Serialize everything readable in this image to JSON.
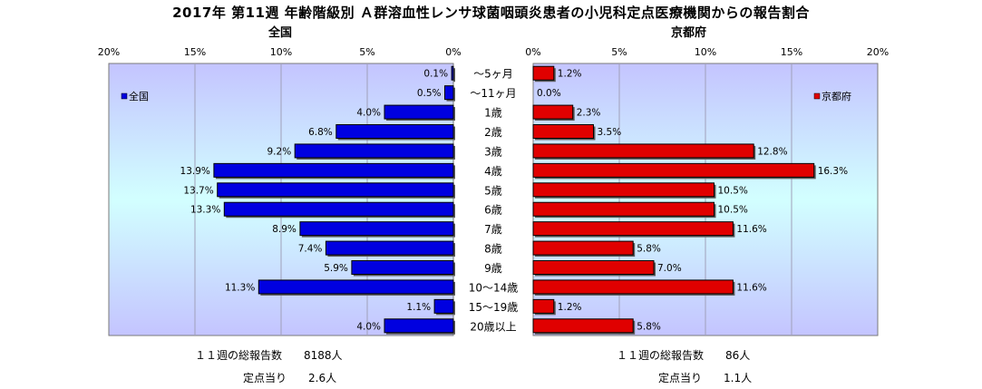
{
  "chart_data": {
    "type": "bar",
    "orientation": "horizontal",
    "title": "2017年 第11週 年齢階級別 Ａ群溶血性レンサ球菌咽頭炎患者の小児科定点医療機関からの報告割合",
    "categories": [
      "～5ヶ月",
      "～11ヶ月",
      "1歳",
      "2歳",
      "3歳",
      "4歳",
      "5歳",
      "6歳",
      "7歳",
      "8歳",
      "9歳",
      "10～14歳",
      "15～19歳",
      "20歳以上"
    ],
    "left": {
      "panel_title": "全国",
      "legend": "全国",
      "color": "#0000e0",
      "values": [
        0.1,
        0.5,
        4.0,
        6.8,
        9.2,
        13.9,
        13.7,
        13.3,
        8.9,
        7.4,
        5.9,
        11.3,
        1.1,
        4.0
      ],
      "labels": [
        "0.1%",
        "0.5%",
        "4.0%",
        "6.8%",
        "9.2%",
        "13.9%",
        "13.7%",
        "13.3%",
        "8.9%",
        "7.4%",
        "5.9%",
        "11.3%",
        "1.1%",
        "4.0%"
      ],
      "xlim": [
        0,
        20
      ],
      "ticks": [
        "20%",
        "15%",
        "10%",
        "5%",
        "0%"
      ],
      "legend_position": "left",
      "grid": true
    },
    "right": {
      "panel_title": "京都府",
      "legend": "京都府",
      "color": "#e00000",
      "values": [
        1.2,
        0.0,
        2.3,
        3.5,
        12.8,
        16.3,
        10.5,
        10.5,
        11.6,
        5.8,
        7.0,
        11.6,
        1.2,
        5.8
      ],
      "labels": [
        "1.2%",
        "0.0%",
        "2.3%",
        "3.5%",
        "12.8%",
        "16.3%",
        "10.5%",
        "10.5%",
        "11.6%",
        "5.8%",
        "7.0%",
        "11.6%",
        "1.2%",
        "5.8%"
      ],
      "xlim": [
        0,
        20
      ],
      "ticks": [
        "0%",
        "5%",
        "10%",
        "15%",
        "20%"
      ],
      "legend_position": "right",
      "grid": true
    }
  },
  "footer": {
    "national_total": "１１週の総報告数　　8188人",
    "national_per_site": "定点当り　　2.6人",
    "kyoto_total": "１１週の総報告数　　86人",
    "kyoto_per_site": "定点当り　　1.1人"
  }
}
